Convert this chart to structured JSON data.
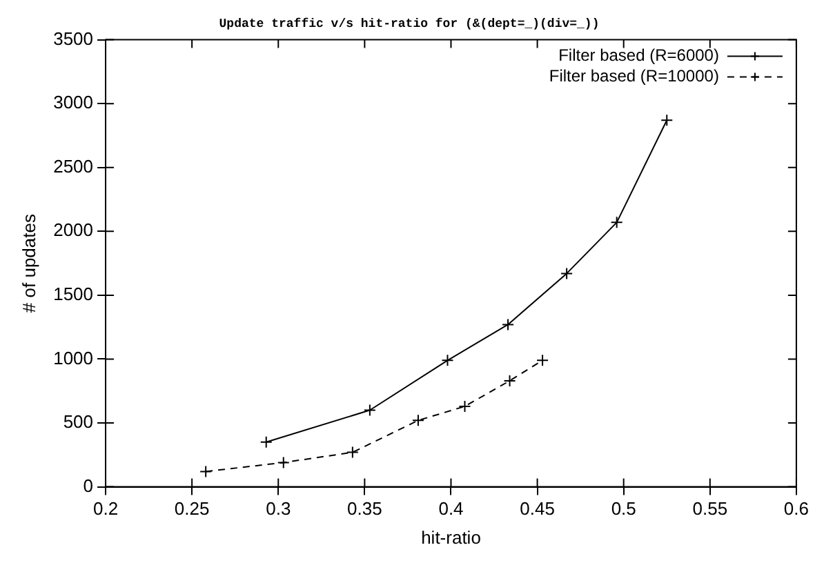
{
  "chart_data": {
    "type": "line",
    "title": "Update traffic v/s hit-ratio for (&(dept=_)(div=_))",
    "xlabel": "hit-ratio",
    "ylabel": "# of updates",
    "xlim": [
      0.2,
      0.6
    ],
    "xticks": [
      0.2,
      0.25,
      0.3,
      0.35,
      0.4,
      0.45,
      0.5,
      0.55,
      0.6
    ],
    "ylim": [
      0,
      3500
    ],
    "yticks": [
      0,
      500,
      1000,
      1500,
      2000,
      2500,
      3000,
      3500
    ],
    "grid": false,
    "legend": "top right",
    "marker": "cross",
    "series": [
      {
        "name": "Filter based (R=6000)",
        "color": "#000000",
        "line_style": "solid",
        "x": [
          0.293,
          0.353,
          0.398,
          0.433,
          0.467,
          0.496,
          0.525
        ],
        "values": [
          350,
          600,
          990,
          1270,
          1670,
          2070,
          2870
        ]
      },
      {
        "name": "Filter based (R=10000)",
        "color": "#000000",
        "line_style": "dashed",
        "x": [
          0.258,
          0.303,
          0.343,
          0.381,
          0.408,
          0.434,
          0.453
        ],
        "values": [
          120,
          190,
          270,
          520,
          630,
          830,
          990
        ]
      }
    ]
  }
}
